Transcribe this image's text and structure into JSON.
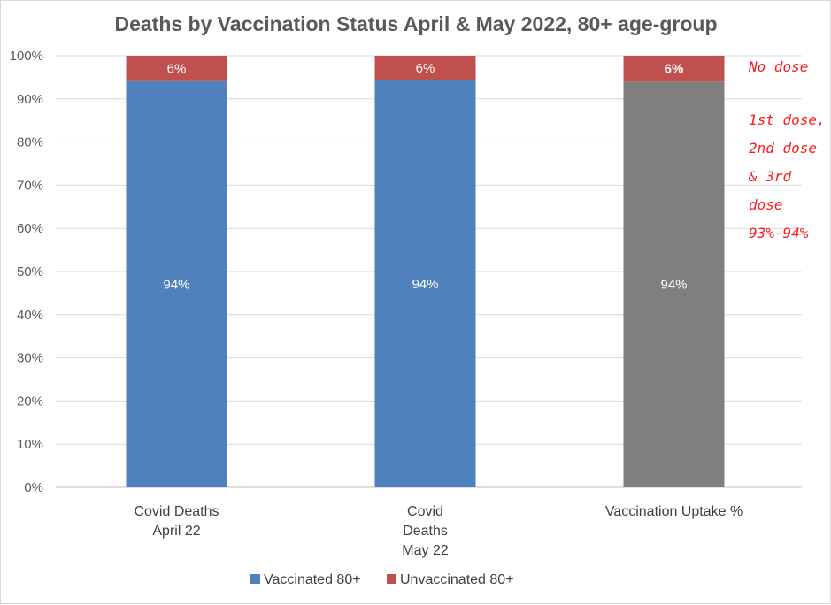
{
  "chart_data": {
    "type": "bar",
    "stacked": true,
    "percent_stacked": true,
    "title": "Deaths by Vaccination Status April & May 2022, 80+ age-group",
    "categories": [
      [
        "Covid Deaths",
        "April 22"
      ],
      [
        "Covid",
        "Deaths",
        "May 22"
      ],
      [
        "Vaccination Uptake %"
      ]
    ],
    "series": [
      {
        "name": "Vaccinated 80+",
        "values": [
          94.1,
          94.3,
          94.0
        ],
        "labels": [
          "94%",
          "94%",
          "94%"
        ],
        "colors": [
          "#4f81bd",
          "#4f81bd",
          "#7f7f7f"
        ]
      },
      {
        "name": "Unvaccinated 80+",
        "values": [
          5.9,
          5.7,
          6.0
        ],
        "labels": [
          "6%",
          "6%",
          "6%"
        ],
        "colors": [
          "#c0504d",
          "#c0504d",
          "#c0504d"
        ],
        "bold_label_index": 2
      }
    ],
    "y_ticks": [
      "0%",
      "10%",
      "20%",
      "30%",
      "40%",
      "50%",
      "60%",
      "70%",
      "80%",
      "90%",
      "100%"
    ],
    "ylim": [
      0,
      100
    ],
    "grid": true,
    "legend_position": "bottom",
    "annotations": {
      "no_dose": "No dose",
      "doses": [
        "1st dose,",
        "2nd dose",
        "& 3rd",
        "dose",
        "93%-94%"
      ]
    }
  },
  "colors": {
    "vaccinated": "#4f81bd",
    "unvaccinated": "#c0504d",
    "uptake": "#7f7f7f",
    "grid": "#d9d9d9",
    "annotation": "#ff1a1a"
  }
}
